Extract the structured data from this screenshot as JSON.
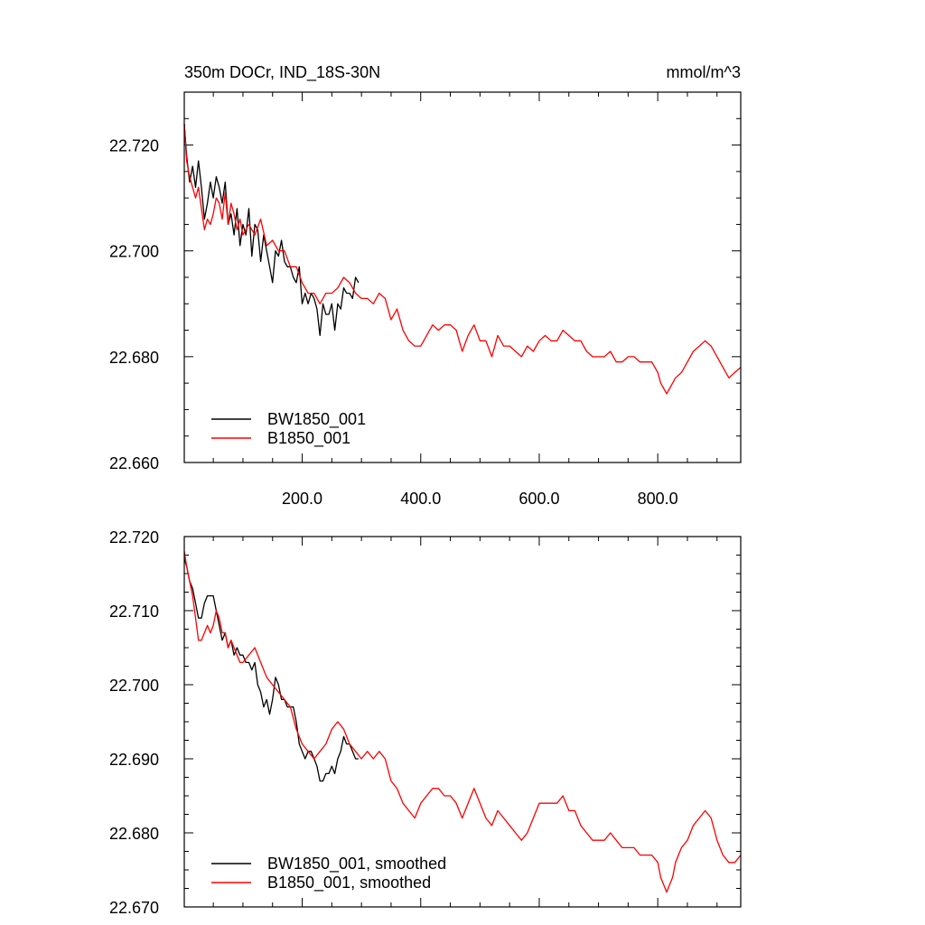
{
  "chart_data": [
    {
      "type": "line",
      "title": "350m DOCr, IND_18S-30N",
      "units": "mmol/m^3",
      "xlim": [
        1,
        940
      ],
      "ylim": [
        22.66,
        22.73
      ],
      "xticks": [
        200,
        400,
        600,
        800
      ],
      "xtick_labels": [
        "200.0",
        "400.0",
        "600.0",
        "800.0"
      ],
      "yticks": [
        22.66,
        22.68,
        22.7,
        22.72
      ],
      "ytick_labels": [
        "22.660",
        "22.680",
        "22.700",
        "22.720"
      ],
      "legend_position": "bottom-left",
      "series": [
        {
          "name": "BW1850_001",
          "color": "#000000",
          "x": [
            1,
            5,
            10,
            15,
            20,
            25,
            30,
            35,
            40,
            45,
            50,
            55,
            60,
            65,
            70,
            75,
            80,
            85,
            90,
            95,
            100,
            105,
            110,
            115,
            120,
            125,
            130,
            135,
            140,
            145,
            150,
            155,
            160,
            165,
            170,
            175,
            180,
            185,
            190,
            195,
            200,
            205,
            210,
            215,
            220,
            225,
            230,
            235,
            240,
            245,
            250,
            255,
            260,
            265,
            270,
            275,
            280,
            285,
            290,
            295
          ],
          "y": [
            22.724,
            22.718,
            22.713,
            22.716,
            22.712,
            22.717,
            22.712,
            22.706,
            22.709,
            22.713,
            22.71,
            22.714,
            22.712,
            22.709,
            22.713,
            22.705,
            22.707,
            22.703,
            22.708,
            22.701,
            22.705,
            22.703,
            22.708,
            22.699,
            22.705,
            22.704,
            22.698,
            22.703,
            22.7,
            22.697,
            22.694,
            22.7,
            22.699,
            22.702,
            22.698,
            22.697,
            22.697,
            22.695,
            22.694,
            22.697,
            22.69,
            22.692,
            22.69,
            22.692,
            22.691,
            22.689,
            22.684,
            22.69,
            22.688,
            22.688,
            22.69,
            22.685,
            22.69,
            22.689,
            22.693,
            22.692,
            22.692,
            22.691,
            22.695,
            22.694
          ]
        },
        {
          "name": "B1850_001",
          "color": "#ff0000",
          "x": [
            1,
            5,
            10,
            15,
            20,
            25,
            30,
            35,
            40,
            45,
            50,
            55,
            60,
            65,
            70,
            75,
            80,
            85,
            90,
            95,
            100,
            110,
            120,
            130,
            140,
            150,
            160,
            170,
            180,
            190,
            200,
            210,
            220,
            230,
            240,
            250,
            260,
            270,
            280,
            290,
            300,
            310,
            320,
            330,
            340,
            350,
            360,
            370,
            380,
            390,
            400,
            410,
            420,
            430,
            440,
            450,
            460,
            470,
            480,
            490,
            500,
            510,
            520,
            530,
            540,
            550,
            560,
            570,
            580,
            590,
            600,
            610,
            620,
            630,
            640,
            650,
            660,
            670,
            680,
            690,
            700,
            710,
            720,
            730,
            740,
            750,
            760,
            770,
            780,
            790,
            800,
            805,
            810,
            815,
            820,
            825,
            830,
            840,
            850,
            860,
            870,
            880,
            890,
            900,
            910,
            920,
            930,
            940
          ],
          "y": [
            22.724,
            22.717,
            22.714,
            22.712,
            22.71,
            22.712,
            22.708,
            22.704,
            22.706,
            22.705,
            22.707,
            22.71,
            22.709,
            22.706,
            22.711,
            22.705,
            22.709,
            22.707,
            22.704,
            22.706,
            22.703,
            22.705,
            22.703,
            22.706,
            22.701,
            22.702,
            22.7,
            22.7,
            22.697,
            22.697,
            22.694,
            22.692,
            22.692,
            22.69,
            22.692,
            22.692,
            22.693,
            22.695,
            22.694,
            22.692,
            22.691,
            22.691,
            22.69,
            22.692,
            22.691,
            22.687,
            22.689,
            22.685,
            22.683,
            22.682,
            22.682,
            22.684,
            22.686,
            22.685,
            22.686,
            22.686,
            22.685,
            22.681,
            22.684,
            22.686,
            22.683,
            22.683,
            22.68,
            22.684,
            22.682,
            22.682,
            22.681,
            22.68,
            22.682,
            22.681,
            22.683,
            22.684,
            22.683,
            22.683,
            22.685,
            22.684,
            22.683,
            22.683,
            22.681,
            22.68,
            22.68,
            22.68,
            22.681,
            22.679,
            22.679,
            22.68,
            22.68,
            22.679,
            22.679,
            22.679,
            22.677,
            22.675,
            22.674,
            22.673,
            22.674,
            22.675,
            22.676,
            22.677,
            22.679,
            22.681,
            22.682,
            22.683,
            22.682,
            22.68,
            22.678,
            22.676,
            22.677,
            22.678
          ]
        }
      ]
    },
    {
      "type": "line",
      "xlim": [
        1,
        940
      ],
      "ylim": [
        22.67,
        22.72
      ],
      "yticks": [
        22.67,
        22.68,
        22.69,
        22.7,
        22.71,
        22.72
      ],
      "ytick_labels": [
        "22.670",
        "22.680",
        "22.690",
        "22.700",
        "22.710",
        "22.720"
      ],
      "legend_position": "bottom-left",
      "series": [
        {
          "name": "BW1850_001, smoothed",
          "color": "#000000",
          "x": [
            1,
            5,
            10,
            15,
            20,
            25,
            30,
            35,
            40,
            45,
            50,
            55,
            60,
            65,
            70,
            75,
            80,
            85,
            90,
            95,
            100,
            105,
            110,
            115,
            120,
            125,
            130,
            135,
            140,
            145,
            150,
            155,
            160,
            165,
            170,
            175,
            180,
            185,
            190,
            195,
            200,
            205,
            210,
            215,
            220,
            225,
            230,
            235,
            240,
            245,
            250,
            255,
            260,
            265,
            270,
            275,
            280,
            285,
            290,
            295
          ],
          "y": [
            22.717,
            22.716,
            22.714,
            22.713,
            22.711,
            22.709,
            22.709,
            22.711,
            22.712,
            22.712,
            22.712,
            22.71,
            22.708,
            22.706,
            22.707,
            22.705,
            22.706,
            22.704,
            22.705,
            22.704,
            22.704,
            22.703,
            22.703,
            22.702,
            22.703,
            22.7,
            22.699,
            22.697,
            22.698,
            22.696,
            22.698,
            22.701,
            22.7,
            22.698,
            22.698,
            22.697,
            22.697,
            22.697,
            22.695,
            22.692,
            22.691,
            22.69,
            22.691,
            22.691,
            22.69,
            22.689,
            22.687,
            22.687,
            22.688,
            22.688,
            22.689,
            22.688,
            22.69,
            22.691,
            22.693,
            22.692,
            22.692,
            22.691,
            22.69,
            22.69
          ]
        },
        {
          "name": "B1850_001, smoothed",
          "color": "#ff0000",
          "x": [
            1,
            5,
            10,
            15,
            20,
            25,
            30,
            35,
            40,
            45,
            50,
            55,
            60,
            65,
            70,
            75,
            80,
            85,
            90,
            95,
            100,
            110,
            120,
            130,
            140,
            150,
            160,
            170,
            180,
            190,
            200,
            210,
            220,
            230,
            240,
            250,
            260,
            270,
            280,
            290,
            300,
            310,
            320,
            330,
            340,
            350,
            360,
            370,
            380,
            390,
            400,
            410,
            420,
            430,
            440,
            450,
            460,
            470,
            480,
            490,
            500,
            510,
            520,
            530,
            540,
            550,
            560,
            570,
            580,
            590,
            600,
            610,
            620,
            630,
            640,
            650,
            660,
            670,
            680,
            690,
            700,
            710,
            720,
            730,
            740,
            750,
            760,
            770,
            780,
            790,
            800,
            805,
            810,
            815,
            820,
            825,
            830,
            840,
            850,
            860,
            870,
            880,
            890,
            900,
            910,
            920,
            930,
            940
          ],
          "y": [
            22.718,
            22.716,
            22.714,
            22.712,
            22.709,
            22.706,
            22.706,
            22.707,
            22.708,
            22.707,
            22.708,
            22.71,
            22.709,
            22.707,
            22.707,
            22.705,
            22.706,
            22.705,
            22.704,
            22.703,
            22.703,
            22.704,
            22.705,
            22.703,
            22.701,
            22.7,
            22.699,
            22.698,
            22.697,
            22.694,
            22.692,
            22.691,
            22.69,
            22.691,
            22.692,
            22.694,
            22.695,
            22.694,
            22.692,
            22.691,
            22.69,
            22.691,
            22.69,
            22.691,
            22.69,
            22.687,
            22.686,
            22.684,
            22.683,
            22.682,
            22.684,
            22.685,
            22.686,
            22.686,
            22.685,
            22.685,
            22.684,
            22.682,
            22.684,
            22.686,
            22.684,
            22.682,
            22.681,
            22.683,
            22.682,
            22.681,
            22.68,
            22.679,
            22.68,
            22.682,
            22.684,
            22.684,
            22.684,
            22.684,
            22.685,
            22.683,
            22.683,
            22.681,
            22.68,
            22.679,
            22.679,
            22.679,
            22.68,
            22.679,
            22.678,
            22.678,
            22.678,
            22.677,
            22.677,
            22.677,
            22.676,
            22.674,
            22.673,
            22.672,
            22.673,
            22.674,
            22.676,
            22.678,
            22.679,
            22.681,
            22.682,
            22.683,
            22.682,
            22.679,
            22.677,
            22.676,
            22.676,
            22.677
          ]
        }
      ]
    }
  ]
}
